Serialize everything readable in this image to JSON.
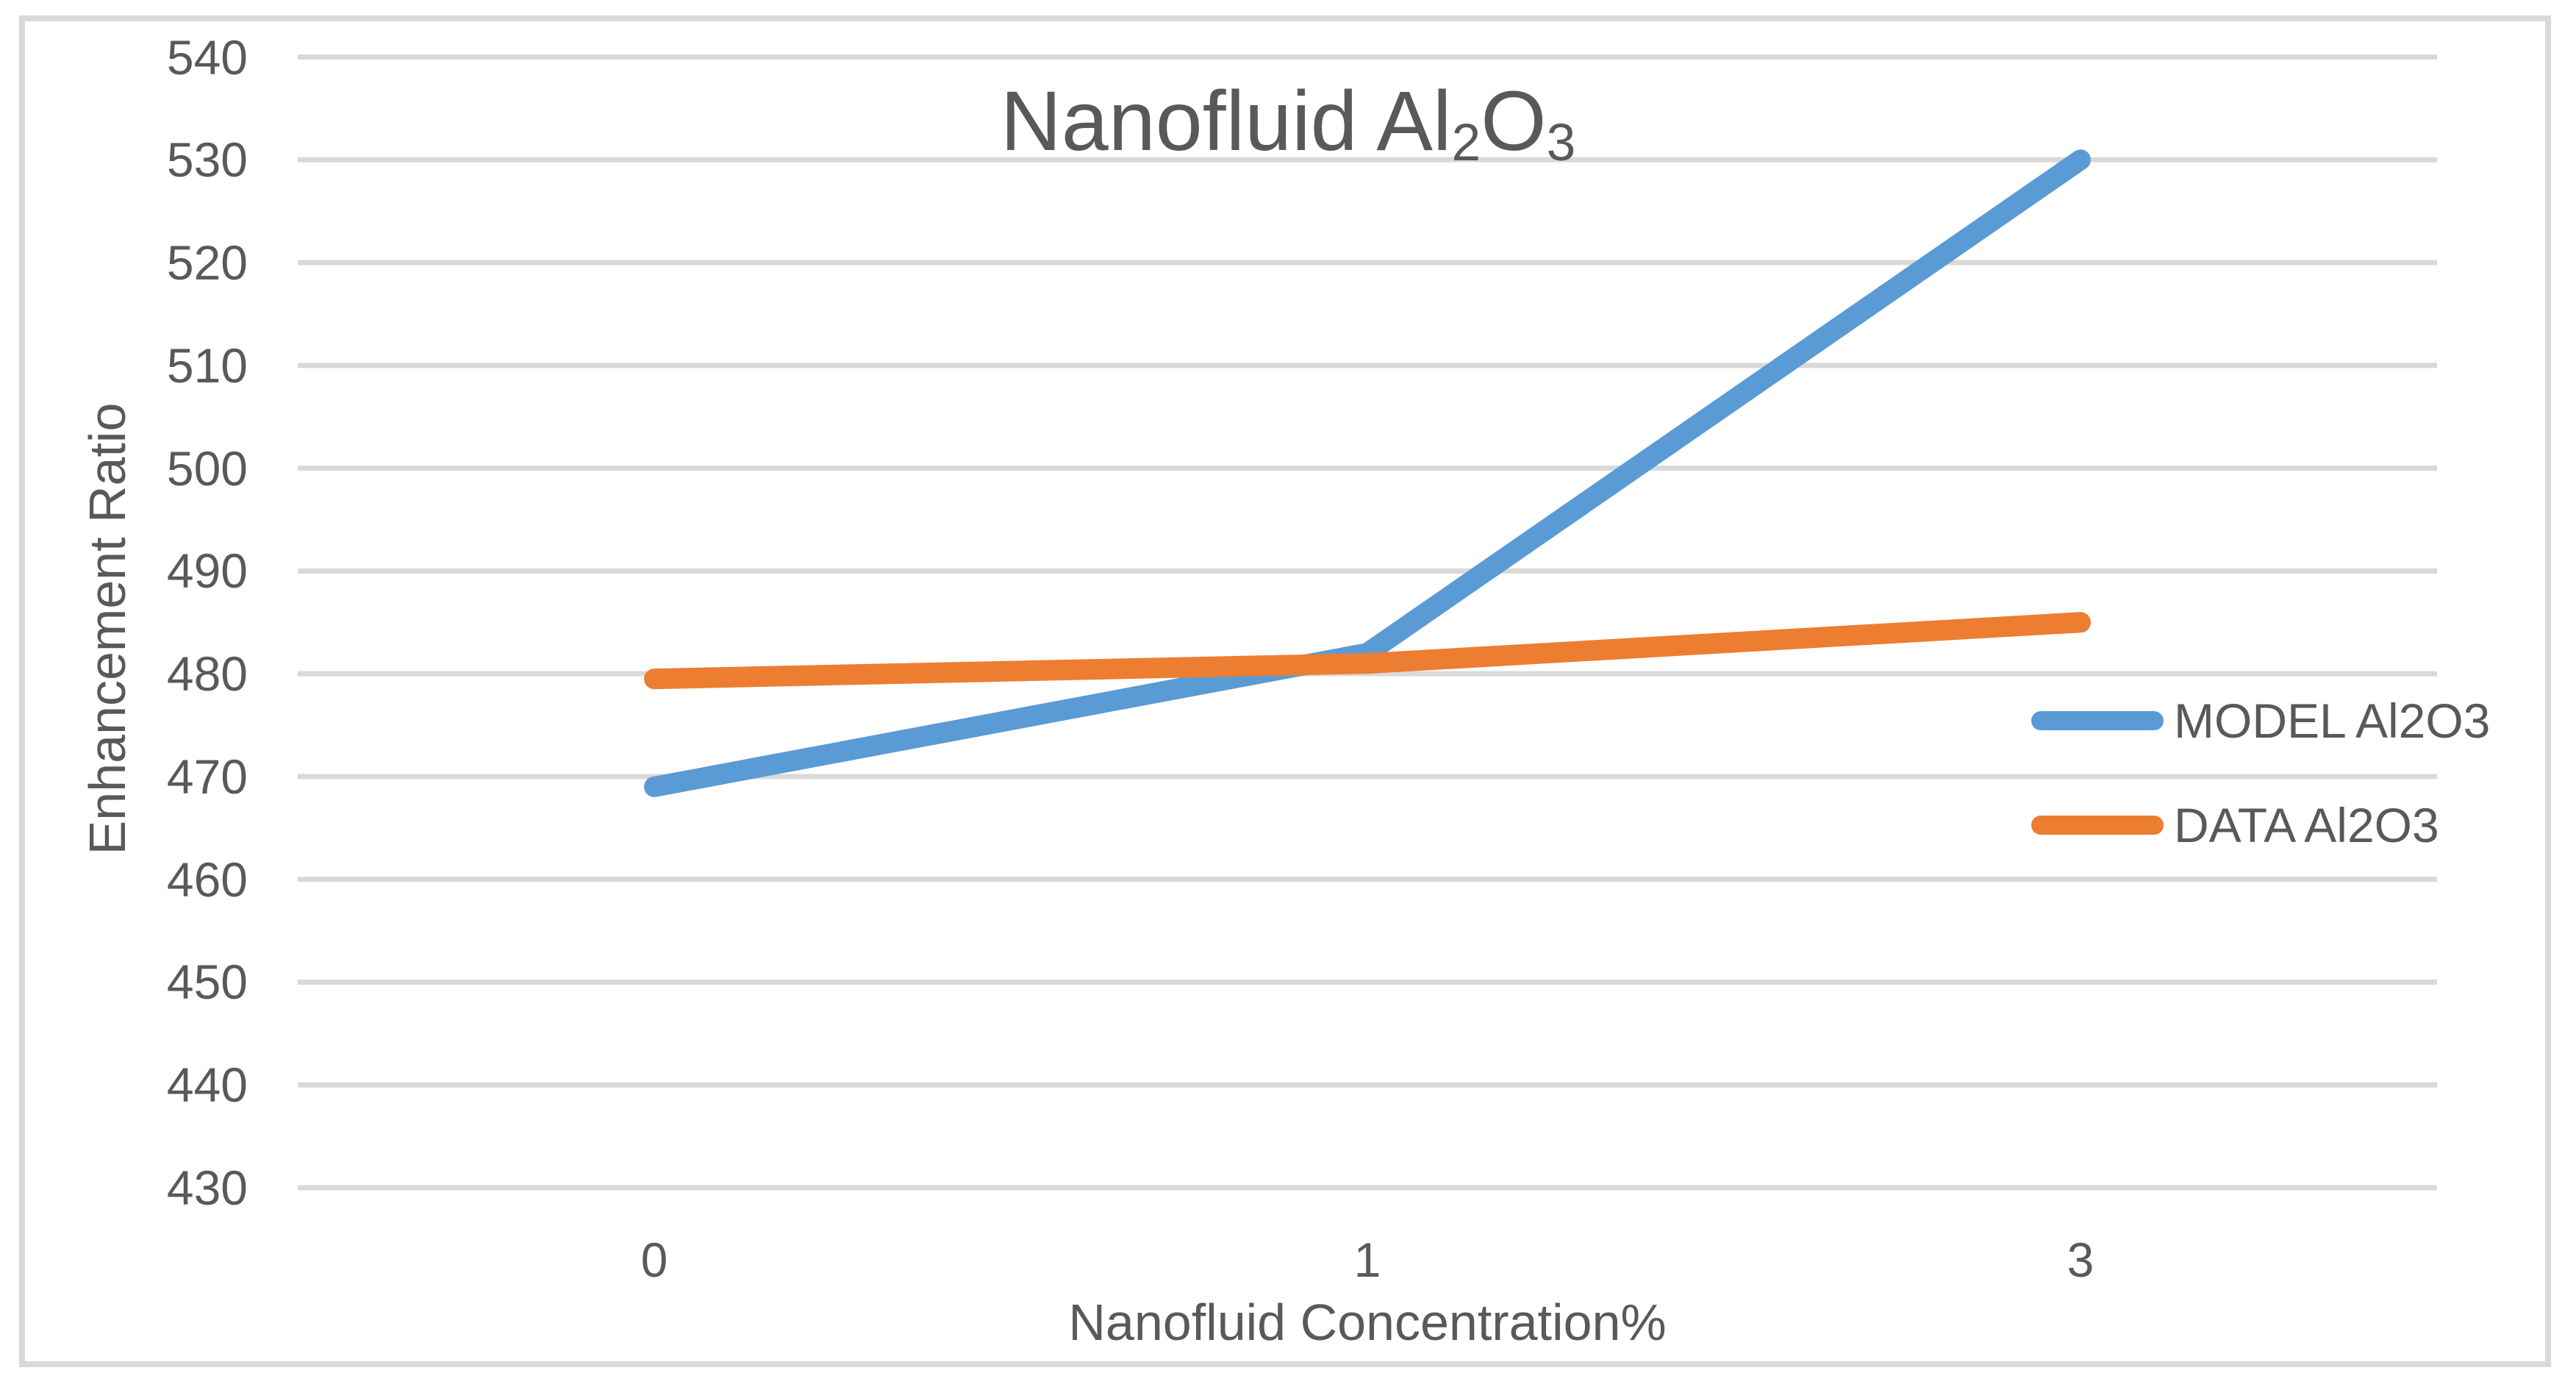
{
  "chart_data": {
    "type": "line",
    "title": "Nanofluid Al2O3",
    "title_display": {
      "prefix": "Nanofluid Al",
      "sub1": "2",
      "mid": "O",
      "sub2": "3"
    },
    "xlabel": "Nanofluid Concentration%",
    "ylabel": "Enhancement Ratio",
    "categories": [
      "0",
      "1",
      "3"
    ],
    "series": [
      {
        "name": "MODEL Al2O3",
        "color": "#5B9BD5",
        "values": [
          469,
          482,
          530
        ]
      },
      {
        "name": "DATA Al2O3",
        "color": "#ED7D31",
        "values": [
          479.5,
          481,
          485
        ]
      }
    ],
    "ylim": [
      430,
      540
    ],
    "ytick_step": 10,
    "yticks": [
      "540",
      "530",
      "520",
      "510",
      "500",
      "490",
      "480",
      "470",
      "460",
      "450",
      "440",
      "430"
    ],
    "grid": true,
    "legend_position": "right-middle",
    "colors": {
      "grid": "#D9D9D9",
      "border": "#D9D9D9",
      "text": "#595959",
      "background": "#FFFFFF"
    }
  }
}
